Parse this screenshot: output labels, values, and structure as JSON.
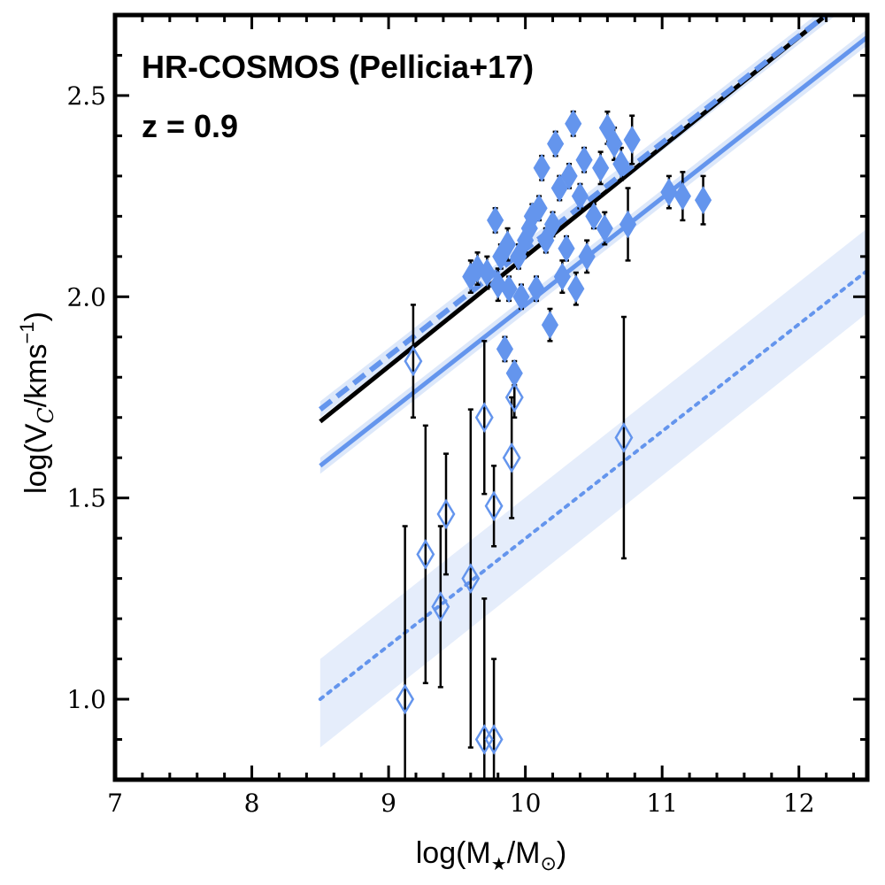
{
  "chart_data": {
    "type": "scatter",
    "title": "HR-COSMOS (Pellicia+17)",
    "subtitle": "z = 0.9",
    "xlabel": {
      "pre": "log(M",
      "sub1": "★",
      "mid": "/M",
      "sub2": "⊙",
      "post": ")"
    },
    "ylabel": {
      "pre": "log(V",
      "sub": "C",
      "mid": "/kms",
      "sup": "−1",
      "post": ")"
    },
    "xlim": [
      7,
      12.5
    ],
    "ylim": [
      0.8,
      2.7
    ],
    "x_ticks": [
      7,
      8,
      9,
      10,
      11,
      12
    ],
    "y_ticks": [
      1.0,
      1.5,
      2.0,
      2.5
    ],
    "x_tick_labels": [
      "7",
      "8",
      "9",
      "10",
      "11",
      "12"
    ],
    "y_tick_labels": [
      "1.0",
      "1.5",
      "2.0",
      "2.5"
    ],
    "colors": {
      "accent": "#6495ED",
      "band": "#C6D8F6",
      "black": "#000000",
      "errorbar": "#000000"
    },
    "series": [
      {
        "name": "filled-diamonds",
        "marker": "filled-diamond",
        "points": [
          {
            "x": 9.6,
            "y": 2.05,
            "err": 0.04
          },
          {
            "x": 9.65,
            "y": 2.07,
            "err": 0.04
          },
          {
            "x": 9.72,
            "y": 2.06,
            "err": 0.04
          },
          {
            "x": 9.78,
            "y": 2.19,
            "err": 0.03
          },
          {
            "x": 9.8,
            "y": 2.03,
            "err": 0.04
          },
          {
            "x": 9.82,
            "y": 2.1,
            "err": 0.03
          },
          {
            "x": 9.85,
            "y": 1.87,
            "err": 0.03
          },
          {
            "x": 9.87,
            "y": 2.13,
            "err": 0.04
          },
          {
            "x": 9.88,
            "y": 2.02,
            "err": 0.03
          },
          {
            "x": 9.92,
            "y": 1.81,
            "err": 0.03
          },
          {
            "x": 9.95,
            "y": 2.1,
            "err": 0.03
          },
          {
            "x": 9.97,
            "y": 2.0,
            "err": 0.03
          },
          {
            "x": 10.0,
            "y": 2.14,
            "err": 0.03
          },
          {
            "x": 10.03,
            "y": 2.17,
            "err": 0.03
          },
          {
            "x": 10.05,
            "y": 2.2,
            "err": 0.03
          },
          {
            "x": 10.08,
            "y": 2.02,
            "err": 0.03
          },
          {
            "x": 10.1,
            "y": 2.22,
            "err": 0.03
          },
          {
            "x": 10.12,
            "y": 2.32,
            "err": 0.03
          },
          {
            "x": 10.15,
            "y": 2.14,
            "err": 0.03
          },
          {
            "x": 10.18,
            "y": 1.93,
            "err": 0.04
          },
          {
            "x": 10.2,
            "y": 2.18,
            "err": 0.03
          },
          {
            "x": 10.22,
            "y": 2.38,
            "err": 0.03
          },
          {
            "x": 10.25,
            "y": 2.27,
            "err": 0.03
          },
          {
            "x": 10.27,
            "y": 2.05,
            "err": 0.04
          },
          {
            "x": 10.3,
            "y": 2.12,
            "err": 0.03
          },
          {
            "x": 10.32,
            "y": 2.3,
            "err": 0.03
          },
          {
            "x": 10.35,
            "y": 2.43,
            "err": 0.03
          },
          {
            "x": 10.37,
            "y": 2.02,
            "err": 0.04
          },
          {
            "x": 10.4,
            "y": 2.25,
            "err": 0.03
          },
          {
            "x": 10.43,
            "y": 2.34,
            "err": 0.03
          },
          {
            "x": 10.45,
            "y": 2.1,
            "err": 0.04
          },
          {
            "x": 10.5,
            "y": 2.2,
            "err": 0.03
          },
          {
            "x": 10.55,
            "y": 2.32,
            "err": 0.04
          },
          {
            "x": 10.58,
            "y": 2.17,
            "err": 0.04
          },
          {
            "x": 10.6,
            "y": 2.42,
            "err": 0.04
          },
          {
            "x": 10.65,
            "y": 2.38,
            "err": 0.04
          },
          {
            "x": 10.7,
            "y": 2.33,
            "err": 0.04
          },
          {
            "x": 10.75,
            "y": 2.18,
            "err": 0.09
          },
          {
            "x": 10.78,
            "y": 2.39,
            "err": 0.06
          },
          {
            "x": 11.05,
            "y": 2.26,
            "err": 0.04
          },
          {
            "x": 11.15,
            "y": 2.25,
            "err": 0.06
          },
          {
            "x": 11.3,
            "y": 2.24,
            "err": 0.06
          }
        ]
      },
      {
        "name": "open-diamonds",
        "marker": "open-diamond",
        "points": [
          {
            "x": 9.12,
            "y": 1.0,
            "err": 0.43
          },
          {
            "x": 9.18,
            "y": 1.84,
            "err": 0.14
          },
          {
            "x": 9.27,
            "y": 1.36,
            "err": 0.32
          },
          {
            "x": 9.38,
            "y": 1.23,
            "err": 0.2
          },
          {
            "x": 9.42,
            "y": 1.46,
            "err": 0.15
          },
          {
            "x": 9.6,
            "y": 1.3,
            "err": 0.42
          },
          {
            "x": 9.7,
            "y": 1.7,
            "err": 0.19
          },
          {
            "x": 9.7,
            "y": 0.9,
            "err": 0.35
          },
          {
            "x": 9.77,
            "y": 0.9,
            "err": 0.2
          },
          {
            "x": 9.77,
            "y": 1.48,
            "err": 0.1
          },
          {
            "x": 9.9,
            "y": 1.6,
            "err": 0.15
          },
          {
            "x": 9.92,
            "y": 1.75,
            "err": 0.05
          },
          {
            "x": 10.72,
            "y": 1.65,
            "err": 0.3
          }
        ]
      }
    ],
    "lines": [
      {
        "name": "black-solid",
        "style": "solid",
        "color": "#000000",
        "x": [
          8.5,
          12.2
        ],
        "y": [
          1.69,
          2.7
        ]
      },
      {
        "name": "blue-dashed-upper",
        "style": "dashed",
        "color": "#6495ED",
        "x": [
          8.5,
          12.5
        ],
        "y": [
          1.72,
          2.78
        ]
      },
      {
        "name": "blue-solid-mid",
        "style": "solid",
        "color": "#6495ED",
        "x": [
          8.5,
          12.5
        ],
        "y": [
          1.58,
          2.645
        ]
      },
      {
        "name": "blue-dotted-lower",
        "style": "dotted",
        "color": "#6495ED",
        "x": [
          8.5,
          12.5
        ],
        "y": [
          1.0,
          2.065
        ]
      }
    ],
    "bands": [
      {
        "name": "upper-band",
        "x": [
          8.5,
          12.5
        ],
        "y_low": [
          1.7,
          2.76
        ],
        "y_high": [
          1.74,
          2.8
        ]
      },
      {
        "name": "mid-band",
        "x": [
          8.5,
          12.5
        ],
        "y_low": [
          1.56,
          2.625
        ],
        "y_high": [
          1.6,
          2.665
        ]
      },
      {
        "name": "lower-band",
        "x": [
          8.5,
          12.5
        ],
        "y_low": [
          0.88,
          1.96
        ],
        "y_high": [
          1.1,
          2.17
        ]
      }
    ]
  }
}
